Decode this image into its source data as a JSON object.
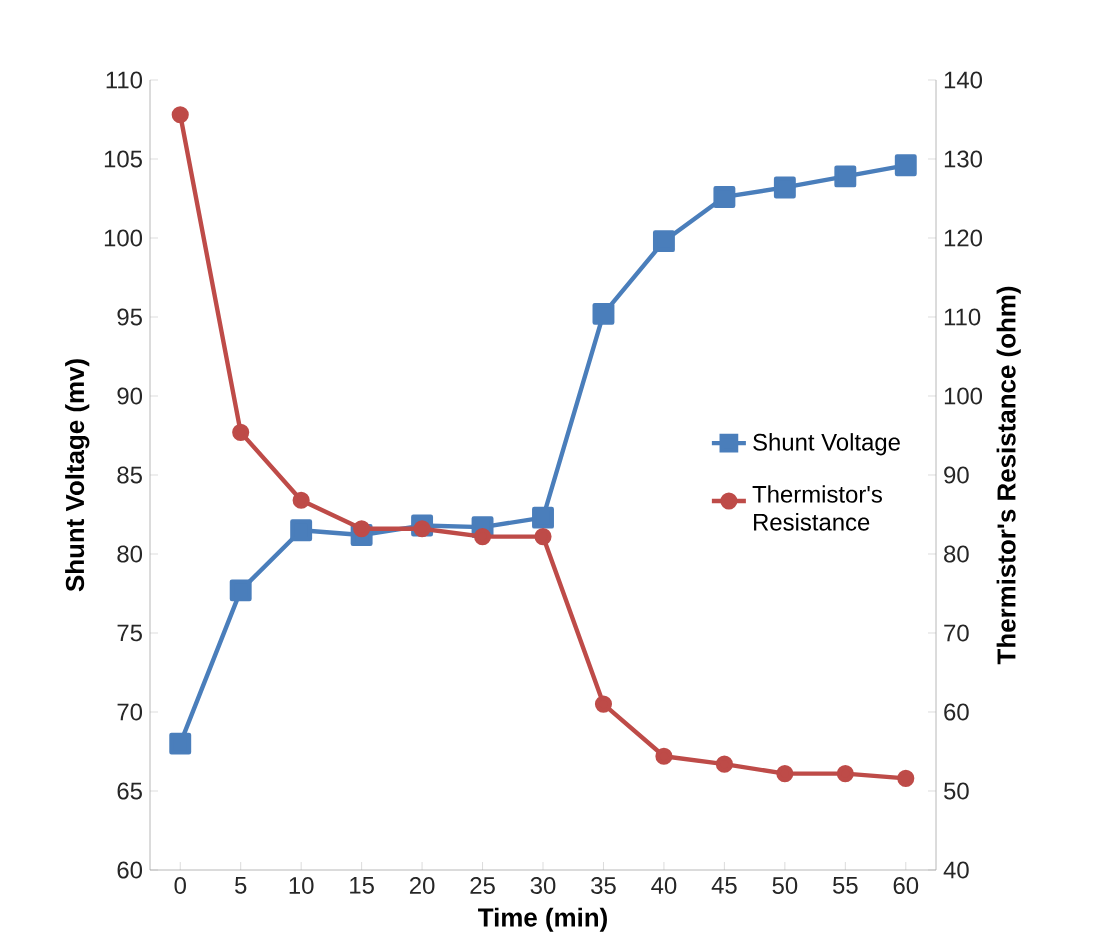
{
  "chart_data": {
    "type": "line",
    "categories": [
      "0",
      "5",
      "10",
      "15",
      "20",
      "25",
      "30",
      "35",
      "40",
      "45",
      "50",
      "55",
      "60"
    ],
    "xlabel": "Time (min)",
    "ylabel": "Shunt Voltage (mv)",
    "y2label": "Thermistor's Resistance (ohm)",
    "ylim": [
      60,
      110
    ],
    "yticks": [
      60,
      65,
      70,
      75,
      80,
      85,
      90,
      95,
      100,
      105,
      110
    ],
    "y2lim": [
      40,
      140
    ],
    "y2ticks": [
      40,
      50,
      60,
      70,
      80,
      90,
      100,
      110,
      120,
      130,
      140
    ],
    "legend": "right",
    "grid": false,
    "series": [
      {
        "name": "Shunt Voltage",
        "color": "#4a7ebb",
        "marker": "square",
        "values": [
          68.0,
          77.7,
          81.5,
          81.2,
          81.8,
          81.7,
          82.3,
          95.2,
          99.8,
          102.6,
          103.2,
          103.9,
          104.6
        ]
      },
      {
        "name": "Thermistor's Resistance",
        "color": "#be4b48",
        "marker": "circle",
        "axis": "y2",
        "values": [
          135.6,
          95.4,
          86.8,
          83.2,
          83.2,
          82.2,
          82.2,
          61.0,
          54.4,
          53.4,
          52.2,
          52.2,
          51.6
        ]
      }
    ]
  }
}
